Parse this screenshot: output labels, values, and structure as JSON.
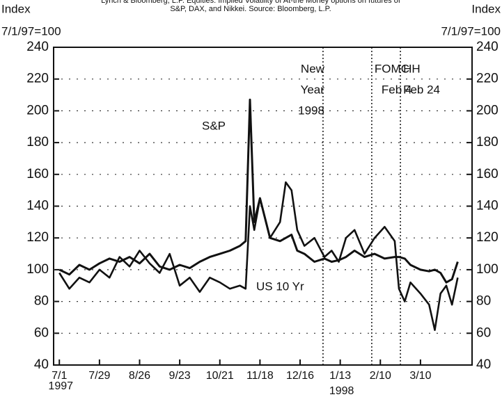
{
  "chart_data": {
    "type": "line",
    "title": [
      "Lynch & Bloomberg, L.P.  Equities: Implied Volatility of At-the Money options on futures of",
      "S&P, DAX, and Nikkei. Source: Bloomberg, L.P."
    ],
    "y_label": [
      "Index",
      "7/1/97=100"
    ],
    "y2_label": [
      "Index",
      "7/1/97=100"
    ],
    "x": [
      0,
      7,
      14,
      21,
      28,
      35,
      42,
      49,
      56,
      63,
      70,
      77,
      84,
      91,
      98,
      105,
      112,
      119,
      126,
      130,
      133,
      136,
      140,
      147,
      154,
      158,
      162,
      166,
      171,
      178,
      185,
      190,
      195,
      200,
      206,
      213,
      220,
      227,
      234,
      237,
      241,
      245,
      252,
      258,
      262,
      266,
      270,
      274,
      278
    ],
    "series": [
      {
        "name": "S&P",
        "color": "#111111",
        "values": [
          100,
          97,
          103,
          100,
          104,
          107,
          105,
          108,
          104,
          110,
          102,
          100,
          103,
          101,
          105,
          108,
          110,
          112,
          115,
          118,
          207,
          130,
          145,
          120,
          118,
          120,
          122,
          112,
          110,
          105,
          107,
          105,
          106,
          108,
          112,
          108,
          110,
          107,
          108,
          108,
          107,
          103,
          100,
          99,
          100,
          98,
          92,
          94,
          105
        ]
      },
      {
        "name": "US 10 Yr",
        "color": "#111111",
        "values": [
          98,
          88,
          95,
          92,
          100,
          95,
          108,
          102,
          112,
          104,
          98,
          110,
          90,
          95,
          86,
          95,
          92,
          88,
          90,
          88,
          140,
          125,
          145,
          120,
          130,
          155,
          150,
          125,
          115,
          120,
          108,
          112,
          105,
          120,
          125,
          110,
          120,
          127,
          118,
          88,
          80,
          92,
          85,
          78,
          62,
          85,
          90,
          78,
          95
        ]
      }
    ],
    "xlim": [
      -4,
      288
    ],
    "xticks": [
      {
        "value": 0,
        "label": "7/1"
      },
      {
        "value": 28,
        "label": "7/29"
      },
      {
        "value": 56,
        "label": "8/26"
      },
      {
        "value": 84,
        "label": "9/23"
      },
      {
        "value": 112,
        "label": "10/21"
      },
      {
        "value": 140,
        "label": "11/18"
      },
      {
        "value": 168,
        "label": "12/16"
      },
      {
        "value": 196,
        "label": "1/13"
      },
      {
        "value": 224,
        "label": "2/10"
      },
      {
        "value": 252,
        "label": "3/10"
      }
    ],
    "year_labels": [
      {
        "value": 0,
        "label": "1997"
      },
      {
        "value": 196,
        "label": "1998"
      }
    ],
    "ylim": [
      40,
      240
    ],
    "yticks": [
      40,
      60,
      80,
      100,
      120,
      140,
      160,
      180,
      200,
      220,
      240
    ],
    "y2lim": [
      40,
      240
    ],
    "y2ticks": [
      40,
      60,
      80,
      100,
      120,
      140,
      160,
      180,
      200,
      220,
      240
    ],
    "grid": true,
    "events": [
      {
        "value": 184,
        "label": [
          "New",
          "Year",
          "1998"
        ]
      },
      {
        "value": 218,
        "label": [
          "FOMC",
          "Feb 4"
        ]
      },
      {
        "value": 238,
        "label": [
          "HH",
          "Feb 24"
        ]
      }
    ]
  }
}
